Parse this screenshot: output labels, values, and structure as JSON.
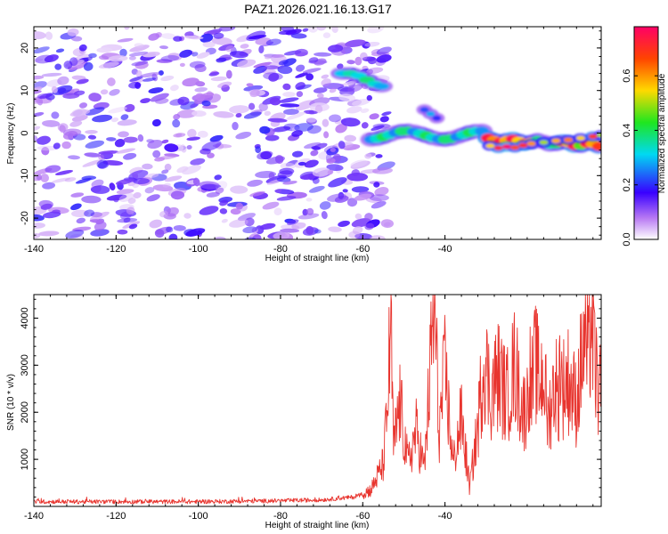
{
  "figure_title": "PAZ1.2026.021.16.13.G17",
  "chart_data": [
    {
      "type": "heatmap",
      "title": "PAZ1.2026.021.16.13.G17",
      "xlabel": "Height of straight line (km)",
      "ylabel": "Frequency (Hz)",
      "xlim": [
        -140,
        -2
      ],
      "ylim": [
        -25,
        25
      ],
      "xticks": [
        -140,
        -120,
        -100,
        -80,
        -60,
        -40
      ],
      "yticks": [
        -20,
        -10,
        0,
        10,
        20
      ],
      "colorbar": {
        "label": "Normalized spectral amplitude",
        "range": [
          0,
          0.78
        ],
        "ticks": [
          "0.0",
          "0.2",
          "0.4",
          "0.6"
        ],
        "tick_values": [
          0.0,
          0.2,
          0.4,
          0.6
        ]
      },
      "features": [
        {
          "name": "background speckle",
          "x_range": [
            -140,
            -55
          ],
          "y_range": [
            -25,
            25
          ],
          "amplitude": 0.1
        },
        {
          "name": "upper track",
          "x_range": [
            -65,
            -54
          ],
          "y_range": [
            10,
            15
          ],
          "amplitude": 0.35
        },
        {
          "name": "main track",
          "x_range": [
            -58,
            -2
          ],
          "y_range": [
            -4,
            2
          ],
          "amplitude_range": [
            0.2,
            0.78
          ]
        },
        {
          "name": "side blob",
          "x_range": [
            -46,
            -40
          ],
          "y_range": [
            4,
            7
          ],
          "amplitude": 0.25
        }
      ]
    },
    {
      "type": "line",
      "xlabel": "Height of straight line (km)",
      "ylabel": "SNR (10 * v/v)",
      "xlim": [
        -140,
        -2
      ],
      "ylim": [
        0,
        4500
      ],
      "xticks": [
        -140,
        -120,
        -100,
        -80,
        -60,
        -40
      ],
      "yticks": [
        1000,
        2000,
        3000,
        4000
      ],
      "series": [
        {
          "name": "SNR",
          "color": "#e8352f",
          "points": [
            [
              -140,
              100
            ],
            [
              -120,
              100
            ],
            [
              -100,
              100
            ],
            [
              -80,
              120
            ],
            [
              -70,
              140
            ],
            [
              -62,
              200
            ],
            [
              -58,
              350
            ],
            [
              -55,
              900
            ],
            [
              -54,
              2000
            ],
            [
              -53.2,
              4000
            ],
            [
              -52.5,
              1200
            ],
            [
              -51,
              2200
            ],
            [
              -49,
              900
            ],
            [
              -47,
              1600
            ],
            [
              -45,
              800
            ],
            [
              -43.5,
              3000
            ],
            [
              -42.5,
              4450
            ],
            [
              -41.5,
              1500
            ],
            [
              -40,
              2900
            ],
            [
              -38,
              900
            ],
            [
              -36,
              1900
            ],
            [
              -34,
              400
            ],
            [
              -32,
              1700
            ],
            [
              -30.5,
              3200
            ],
            [
              -29,
              2400
            ],
            [
              -27,
              2800
            ],
            [
              -25,
              2300
            ],
            [
              -23,
              3000
            ],
            [
              -21,
              2000
            ],
            [
              -20,
              2200
            ],
            [
              -19.5,
              3000
            ],
            [
              -19,
              2400
            ],
            [
              -18,
              3100
            ],
            [
              -17,
              2600
            ],
            [
              -16,
              2900
            ],
            [
              -15,
              1800
            ],
            [
              -14,
              2300
            ],
            [
              -13,
              2700
            ],
            [
              -12.5,
              2000
            ],
            [
              -12,
              3300
            ],
            [
              -11.5,
              2500
            ],
            [
              -10,
              2700
            ],
            [
              -8,
              2200
            ],
            [
              -6,
              3600
            ],
            [
              -5,
              3000
            ],
            [
              -4.5,
              4100
            ],
            [
              -4,
              3500
            ],
            [
              -3,
              2600
            ],
            [
              -2,
              2300
            ]
          ]
        }
      ]
    }
  ],
  "colors": {
    "line": "#e8352f",
    "axes": "#000000",
    "colormap": [
      "#ffffff",
      "#b879f3",
      "#3800ff",
      "#00d9f2",
      "#1fe61f",
      "#ffd900",
      "#ff4400",
      "#ff0066"
    ]
  }
}
